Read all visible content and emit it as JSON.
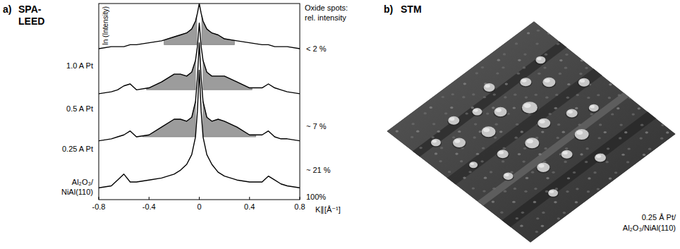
{
  "chart_data": {
    "type": "line",
    "panel_label": "a)",
    "title": "SPA-LEED",
    "y_label": "ln (Intensity)",
    "x_label": "K∥[Å⁻¹]",
    "annotation_heading": [
      "Oxide spots:",
      "rel. intensity"
    ],
    "x": [
      -0.8,
      -0.7,
      -0.65,
      -0.6,
      -0.55,
      -0.5,
      -0.4,
      -0.3,
      -0.2,
      -0.15,
      -0.1,
      -0.06,
      -0.03,
      -0.015,
      0,
      0.015,
      0.03,
      0.06,
      0.1,
      0.15,
      0.2,
      0.3,
      0.4,
      0.5,
      0.55,
      0.6,
      0.65,
      0.7,
      0.8
    ],
    "xlim": [
      -0.8,
      0.8
    ],
    "xticks": [
      -0.8,
      -0.4,
      0,
      0.4,
      0.8
    ],
    "ylim": [
      0,
      100
    ],
    "tick_labels": "x",
    "grid": false,
    "series": [
      {
        "name": "1.0 A Pt",
        "color": "#000000",
        "rel_intensity": "< 2 %",
        "values": [
          77,
          78,
          78,
          78,
          79,
          79,
          80,
          81,
          83,
          84,
          85,
          87,
          91,
          95,
          100,
          95,
          91,
          87,
          85,
          84,
          82,
          81,
          80,
          79,
          79,
          78,
          78,
          78,
          77
        ],
        "shade_ranges": [
          [
            -0.28,
            -0.02
          ],
          [
            0.02,
            0.28
          ]
        ],
        "shade_base": 79
      },
      {
        "name": "0.5 A Pt",
        "color": "#000000",
        "rel_intensity": "~ 7 %",
        "values": [
          54,
          55,
          56,
          58,
          59,
          56,
          57,
          60,
          64,
          64,
          63,
          65,
          71,
          78,
          90,
          78,
          71,
          65,
          63,
          63,
          63,
          60,
          57,
          57,
          59,
          57,
          56,
          55,
          54
        ],
        "shade_ranges": [
          [
            -0.42,
            -0.03
          ],
          [
            0.03,
            0.42
          ]
        ],
        "shade_base": 56
      },
      {
        "name": "0.25 A Pt",
        "color": "#000000",
        "rel_intensity": "~ 21 %",
        "values": [
          30,
          31,
          32,
          33,
          35,
          32,
          33,
          37,
          41,
          41,
          40,
          42,
          50,
          62,
          80,
          62,
          50,
          42,
          40,
          41,
          40,
          37,
          33,
          33,
          35,
          32,
          31,
          31,
          30
        ],
        "shade_ranges": [
          [
            -0.45,
            -0.03
          ],
          [
            0.03,
            0.45
          ]
        ],
        "shade_base": 32
      },
      {
        "name": "Al₂O₃/NiAl(110)",
        "color": "#000000",
        "rel_intensity": "100%",
        "values": [
          6,
          7,
          10,
          13,
          9,
          9,
          10,
          11,
          13,
          15,
          18,
          23,
          32,
          45,
          66,
          45,
          32,
          23,
          18,
          14,
          12,
          10,
          9,
          9,
          12,
          10,
          8,
          7,
          6
        ]
      }
    ]
  },
  "image_panel": {
    "panel_label": "b)",
    "title": "STM",
    "caption": [
      "0.25 Å Pt/",
      "Al₂O₃/NiAl(110)"
    ]
  }
}
